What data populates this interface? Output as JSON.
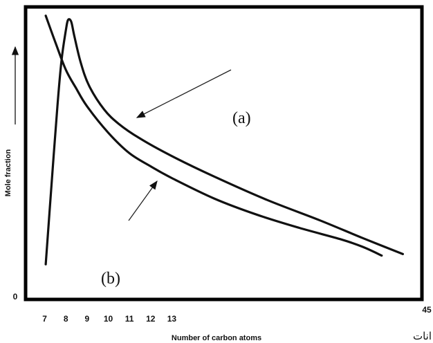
{
  "chart_data": {
    "type": "line",
    "title": "",
    "xlabel": "Number of carbon atoms",
    "ylabel": "Mole fraction",
    "x_ticks": [
      "7",
      "8",
      "9",
      "10",
      "11",
      "12",
      "13"
    ],
    "x_end_label": "45",
    "y_zero_label": "0",
    "xlim": [
      6.1,
      24.8
    ],
    "ylim": [
      0,
      100
    ],
    "grid": false,
    "legend": "none",
    "series": [
      {
        "name": "(a)",
        "color": "#111111",
        "x": [
          7.05,
          7.3,
          7.6,
          7.8,
          8.0,
          8.1,
          8.25,
          8.4,
          8.7,
          9.1,
          9.8,
          10.5,
          11.5,
          13.0,
          15.0,
          17.5,
          20.0,
          22.0,
          23.9
        ],
        "y": [
          12.0,
          37.0,
          66.0,
          82.0,
          92.0,
          95.5,
          95.0,
          90.0,
          81.0,
          73.0,
          65.0,
          60.0,
          55.0,
          49.0,
          42.0,
          34.0,
          27.0,
          21.0,
          15.5
        ]
      },
      {
        "name": "(b)",
        "color": "#111111",
        "x": [
          7.05,
          7.5,
          8.0,
          8.5,
          9.0,
          10.0,
          11.0,
          12.0,
          13.0,
          15.0,
          17.0,
          19.0,
          21.0,
          22.0,
          22.9
        ],
        "y": [
          97.0,
          88.0,
          78.5,
          72.0,
          66.0,
          57.0,
          50.0,
          45.5,
          41.5,
          34.5,
          29.0,
          24.5,
          20.5,
          18.0,
          15.0
        ]
      }
    ],
    "annotations": [
      {
        "label": "(a)",
        "type": "arrow"
      },
      {
        "label": "(b)",
        "type": "arrow"
      }
    ],
    "trailing_text": "انات"
  }
}
